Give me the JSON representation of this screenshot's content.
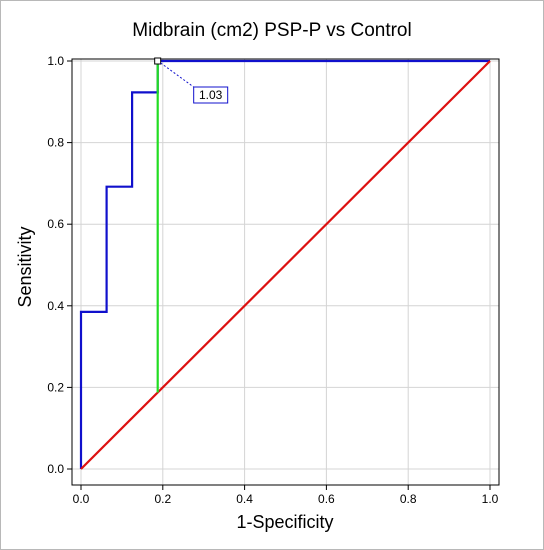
{
  "chart_data": {
    "type": "line",
    "title": "Midbrain (cm2) PSP-P vs Control",
    "xlabel": "1-Specificity",
    "ylabel": "Sensitivity",
    "xlim": [
      0,
      1
    ],
    "ylim": [
      0,
      1
    ],
    "x_ticks": [
      "0.0",
      "0.2",
      "0.4",
      "0.6",
      "0.8",
      "1.0"
    ],
    "y_ticks": [
      "0.0",
      "0.2",
      "0.4",
      "0.6",
      "0.8",
      "1.0"
    ],
    "grid": true,
    "series": [
      {
        "color": "#1010cc",
        "x": [
          0.0,
          0.0,
          0.0625,
          0.0625,
          0.125,
          0.125,
          0.1875,
          0.1875,
          1.0
        ],
        "y": [
          0.0,
          0.385,
          0.385,
          0.692,
          0.692,
          0.923,
          0.923,
          1.0,
          1.0
        ]
      },
      {
        "color": "#dd1111",
        "x": [
          0.0,
          1.0
        ],
        "y": [
          0.0,
          1.0
        ]
      },
      {
        "color": "#22dd22",
        "x": [
          0.1875,
          0.1875
        ],
        "y": [
          0.1875,
          1.0
        ]
      }
    ],
    "annotation": {
      "text": "1.03",
      "point": [
        0.1875,
        1.0
      ]
    }
  }
}
